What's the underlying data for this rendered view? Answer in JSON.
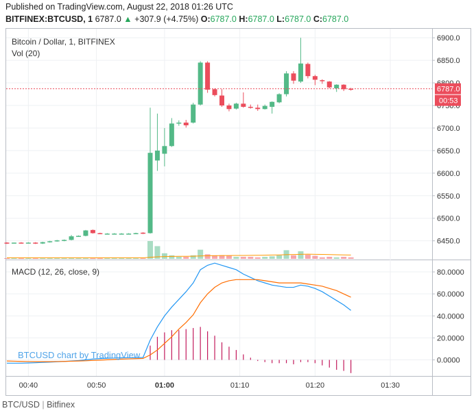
{
  "header": {
    "published": "Published on TradingView.com, August 22, 2018 01:26 UTC",
    "symbol": "BITFINEX:BTCUSD, 1",
    "last": "6787.0",
    "change_arrow": "▲",
    "change": "+307.9 (+4.75%)",
    "o_label": "O:",
    "o_value": "6787.0",
    "h_label": "H:",
    "h_value": "6787.0",
    "l_label": "L:",
    "l_value": "6787.0",
    "c_label": "C:",
    "c_value": "6787.0"
  },
  "footer": {
    "left": "BTC/USD",
    "sep": "|",
    "right": "Bitfinex"
  },
  "colors": {
    "up": "#53b987",
    "down": "#eb4d5c",
    "macd": "#2196f3",
    "signal": "#ff6d00",
    "hist": "#c2185b",
    "vol_ma": "#ff9800"
  },
  "chart_data": [
    {
      "type": "candlestick",
      "title": "Bitcoin / Dollar, 1, BITFINEX",
      "subtitle": "Vol (20)",
      "watermark": "BTCUSD chart by TradingView",
      "x_ticks": [
        "00:40",
        "00:50",
        "01:00",
        "01:10",
        "01:20",
        "01:30"
      ],
      "x_ticks_bold": [
        "01:00"
      ],
      "y_ticks": [
        "6900.0",
        "6850.0",
        "6800.0",
        "6750.0",
        "6700.0",
        "6650.0",
        "6600.0",
        "6550.0",
        "6500.0",
        "6450.0"
      ],
      "y_values": [
        6900,
        6850,
        6800,
        6750,
        6700,
        6650,
        6600,
        6550,
        6500,
        6450
      ],
      "ylim": [
        6410,
        6920
      ],
      "last_price_label": "6787.0",
      "countdown_label": "00:53",
      "last_price": 6787.0,
      "candles": [
        {
          "t": 0,
          "o": 6446,
          "h": 6447,
          "l": 6443,
          "c": 6445,
          "v": 1
        },
        {
          "t": 1,
          "o": 6445,
          "h": 6446,
          "l": 6444,
          "c": 6446,
          "v": 1
        },
        {
          "t": 2,
          "o": 6446,
          "h": 6447,
          "l": 6444,
          "c": 6445,
          "v": 1
        },
        {
          "t": 3,
          "o": 6446,
          "h": 6447,
          "l": 6445,
          "c": 6446,
          "v": 1
        },
        {
          "t": 4,
          "o": 6446,
          "h": 6447,
          "l": 6443,
          "c": 6444,
          "v": 1
        },
        {
          "t": 5,
          "o": 6444,
          "h": 6448,
          "l": 6443,
          "c": 6447,
          "v": 1
        },
        {
          "t": 6,
          "o": 6447,
          "h": 6450,
          "l": 6446,
          "c": 6449,
          "v": 1
        },
        {
          "t": 7,
          "o": 6449,
          "h": 6452,
          "l": 6448,
          "c": 6451,
          "v": 1
        },
        {
          "t": 8,
          "o": 6451,
          "h": 6453,
          "l": 6449,
          "c": 6452,
          "v": 1
        },
        {
          "t": 9,
          "o": 6452,
          "h": 6463,
          "l": 6451,
          "c": 6460,
          "v": 1
        },
        {
          "t": 10,
          "o": 6461,
          "h": 6462,
          "l": 6460,
          "c": 6461,
          "v": 1
        },
        {
          "t": 11,
          "o": 6461,
          "h": 6474,
          "l": 6460,
          "c": 6473,
          "v": 1
        },
        {
          "t": 12,
          "o": 6474,
          "h": 6475,
          "l": 6466,
          "c": 6467,
          "v": 1
        },
        {
          "t": 13,
          "o": 6467,
          "h": 6468,
          "l": 6465,
          "c": 6466,
          "v": 1
        },
        {
          "t": 14,
          "o": 6466,
          "h": 6467,
          "l": 6465,
          "c": 6466,
          "v": 1
        },
        {
          "t": 15,
          "o": 6466,
          "h": 6467,
          "l": 6465,
          "c": 6466,
          "v": 1
        },
        {
          "t": 16,
          "o": 6466,
          "h": 6467,
          "l": 6465,
          "c": 6466,
          "v": 1
        },
        {
          "t": 17,
          "o": 6466,
          "h": 6467,
          "l": 6465,
          "c": 6466,
          "v": 1
        },
        {
          "t": 18,
          "o": 6466,
          "h": 6468,
          "l": 6465,
          "c": 6467,
          "v": 1
        },
        {
          "t": 19,
          "o": 6468,
          "h": 6469,
          "l": 6465,
          "c": 6466,
          "v": 1
        },
        {
          "t": 20,
          "o": 6467,
          "h": 6745,
          "l": 6466,
          "c": 6645,
          "v": 35
        },
        {
          "t": 21,
          "o": 6628,
          "h": 6732,
          "l": 6605,
          "c": 6650,
          "v": 25
        },
        {
          "t": 22,
          "o": 6643,
          "h": 6700,
          "l": 6615,
          "c": 6660,
          "v": 11
        },
        {
          "t": 23,
          "o": 6660,
          "h": 6722,
          "l": 6658,
          "c": 6710,
          "v": 7
        },
        {
          "t": 24,
          "o": 6710,
          "h": 6717,
          "l": 6705,
          "c": 6712,
          "v": 4
        },
        {
          "t": 25,
          "o": 6712,
          "h": 6718,
          "l": 6701,
          "c": 6706,
          "v": 4
        },
        {
          "t": 26,
          "o": 6712,
          "h": 6756,
          "l": 6710,
          "c": 6752,
          "v": 7
        },
        {
          "t": 27,
          "o": 6752,
          "h": 6848,
          "l": 6750,
          "c": 6845,
          "v": 18
        },
        {
          "t": 28,
          "o": 6845,
          "h": 6848,
          "l": 6778,
          "c": 6785,
          "v": 9
        },
        {
          "t": 29,
          "o": 6786,
          "h": 6788,
          "l": 6770,
          "c": 6773,
          "v": 7
        },
        {
          "t": 30,
          "o": 6772,
          "h": 6786,
          "l": 6747,
          "c": 6750,
          "v": 7
        },
        {
          "t": 31,
          "o": 6750,
          "h": 6754,
          "l": 6737,
          "c": 6742,
          "v": 6
        },
        {
          "t": 32,
          "o": 6743,
          "h": 6756,
          "l": 6741,
          "c": 6754,
          "v": 4
        },
        {
          "t": 33,
          "o": 6754,
          "h": 6779,
          "l": 6745,
          "c": 6747,
          "v": 4
        },
        {
          "t": 34,
          "o": 6747,
          "h": 6752,
          "l": 6743,
          "c": 6746,
          "v": 4
        },
        {
          "t": 35,
          "o": 6745,
          "h": 6752,
          "l": 6738,
          "c": 6742,
          "v": 3
        },
        {
          "t": 36,
          "o": 6742,
          "h": 6752,
          "l": 6741,
          "c": 6749,
          "v": 4
        },
        {
          "t": 37,
          "o": 6747,
          "h": 6759,
          "l": 6732,
          "c": 6758,
          "v": 5
        },
        {
          "t": 38,
          "o": 6757,
          "h": 6777,
          "l": 6755,
          "c": 6775,
          "v": 7
        },
        {
          "t": 39,
          "o": 6775,
          "h": 6826,
          "l": 6770,
          "c": 6821,
          "v": 17
        },
        {
          "t": 40,
          "o": 6821,
          "h": 6826,
          "l": 6798,
          "c": 6805,
          "v": 7
        },
        {
          "t": 41,
          "o": 6803,
          "h": 6900,
          "l": 6800,
          "c": 6843,
          "v": 15
        },
        {
          "t": 42,
          "o": 6842,
          "h": 6845,
          "l": 6810,
          "c": 6815,
          "v": 8
        },
        {
          "t": 43,
          "o": 6815,
          "h": 6818,
          "l": 6795,
          "c": 6807,
          "v": 6
        },
        {
          "t": 44,
          "o": 6806,
          "h": 6808,
          "l": 6798,
          "c": 6805,
          "v": 3
        },
        {
          "t": 45,
          "o": 6803,
          "h": 6804,
          "l": 6788,
          "c": 6790,
          "v": 4
        },
        {
          "t": 46,
          "o": 6788,
          "h": 6797,
          "l": 6780,
          "c": 6796,
          "v": 3
        },
        {
          "t": 47,
          "o": 6796,
          "h": 6797,
          "l": 6782,
          "c": 6786,
          "v": 4
        },
        {
          "t": 48,
          "o": 6787,
          "h": 6789,
          "l": 6783,
          "c": 6786,
          "v": 3
        }
      ],
      "vol_ma": [
        2,
        2,
        2,
        2,
        2,
        2,
        2,
        2,
        2,
        2,
        2,
        2,
        2,
        2,
        2,
        2,
        2,
        2,
        2,
        2,
        3,
        4,
        4.5,
        4.8,
        5,
        5.1,
        5.3,
        5.8,
        6.1,
        6.3,
        6.5,
        6.6,
        6.7,
        6.8,
        6.9,
        7,
        7.2,
        7.5,
        7.8,
        8.3,
        8.5,
        9,
        9.2,
        9,
        8.7,
        8.4,
        8.1,
        7.8,
        7.5
      ],
      "vol_max": 35
    },
    {
      "type": "line",
      "title": "MACD (12, 26, close, 9)",
      "y_ticks": [
        "80.0000",
        "60.0000",
        "40.0000",
        "20.0000",
        "0.0000"
      ],
      "y_values": [
        80,
        60,
        40,
        20,
        0
      ],
      "ylim": [
        -14,
        90
      ],
      "series": [
        {
          "key": "macd",
          "values": [
            -3,
            -3,
            -3,
            -2.8,
            -2.6,
            -2.3,
            -2,
            -1.7,
            -1.4,
            -1,
            -0.6,
            0,
            0.8,
            1.2,
            1.5,
            1.7,
            1.9,
            2,
            2.1,
            2.2,
            18,
            30,
            40,
            48,
            55,
            62,
            70,
            82,
            86,
            88,
            86,
            84,
            82,
            78,
            75,
            72,
            70,
            68,
            67,
            66,
            66,
            68,
            67,
            65,
            62,
            58,
            54,
            50,
            45
          ]
        },
        {
          "key": "signal",
          "values": [
            -1,
            -1.2,
            -1.4,
            -1.5,
            -1.6,
            -1.6,
            -1.6,
            -1.5,
            -1.4,
            -1.2,
            -1,
            -0.8,
            -0.5,
            -0.2,
            0.1,
            0.4,
            0.7,
            0.9,
            1.1,
            1.3,
            4.5,
            9,
            15,
            21,
            28,
            34,
            41,
            52,
            60,
            66,
            70,
            72,
            73,
            73,
            73,
            73,
            72,
            71,
            70,
            70,
            70,
            70,
            69,
            68,
            67,
            65,
            63,
            60,
            57
          ]
        }
      ],
      "histogram": [
        0,
        0,
        0,
        0,
        0,
        0,
        0,
        0,
        0,
        0,
        0,
        0,
        0,
        0,
        0,
        0,
        0,
        0,
        0,
        0,
        13,
        21,
        25,
        27,
        27,
        28,
        29,
        30,
        26,
        22,
        16,
        12,
        9,
        5,
        2,
        -1,
        -2,
        -3,
        -3,
        -3,
        -4,
        -2,
        -2,
        -3,
        -5,
        -7,
        -9,
        -10,
        -12
      ]
    }
  ]
}
